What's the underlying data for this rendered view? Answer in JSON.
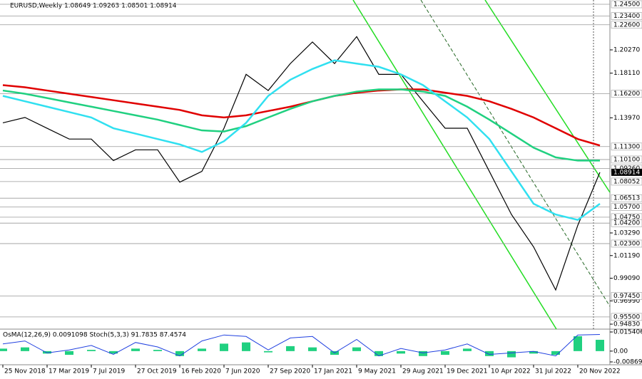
{
  "chart_data": [
    {
      "type": "line",
      "title": "EURUSD,Weekly  1.08649 1.09263 1.08501 1.08914",
      "categories": [
        "25 Nov 2018",
        null,
        "17 Mar 2019",
        null,
        "7 Jul 2019",
        null,
        "27 Oct 2019",
        null,
        "16 Feb 2020",
        null,
        "7 Jun 2020",
        null,
        "27 Sep 2020",
        null,
        "17 Jan 2021",
        null,
        "9 May 2021",
        null,
        "29 Aug 2021",
        null,
        "19 Dec 2021",
        null,
        "10 Apr 2022",
        null,
        "31 Jul 2022",
        null,
        "20 Nov 2022",
        null
      ],
      "series": [
        {
          "color": "#000000",
          "values": [
            1.135,
            1.14,
            1.13,
            1.12,
            1.12,
            1.1,
            1.11,
            1.11,
            1.08,
            1.09,
            1.13,
            1.18,
            1.165,
            1.19,
            1.21,
            1.19,
            1.215,
            1.18,
            1.18,
            1.155,
            1.13,
            1.13,
            1.09,
            1.05,
            1.02,
            0.98,
            1.04,
            1.08914
          ]
        },
        {
          "color": "#e00000",
          "values": [
            1.17,
            1.168,
            1.165,
            1.162,
            1.159,
            1.156,
            1.153,
            1.15,
            1.147,
            1.142,
            1.14,
            1.142,
            1.146,
            1.15,
            1.155,
            1.16,
            1.163,
            1.165,
            1.166,
            1.166,
            1.163,
            1.16,
            1.155,
            1.148,
            1.14,
            1.13,
            1.12,
            1.114
          ]
        },
        {
          "color": "#20d080",
          "values": [
            1.165,
            1.162,
            1.158,
            1.154,
            1.15,
            1.146,
            1.142,
            1.138,
            1.133,
            1.128,
            1.127,
            1.132,
            1.14,
            1.148,
            1.155,
            1.16,
            1.164,
            1.166,
            1.166,
            1.164,
            1.16,
            1.15,
            1.138,
            1.125,
            1.112,
            1.103,
            1.1,
            1.1
          ]
        },
        {
          "color": "#30e0f0",
          "values": [
            1.16,
            1.155,
            1.15,
            1.145,
            1.14,
            1.13,
            1.125,
            1.12,
            1.115,
            1.108,
            1.118,
            1.135,
            1.16,
            1.175,
            1.185,
            1.193,
            1.19,
            1.187,
            1.18,
            1.17,
            1.155,
            1.14,
            1.12,
            1.09,
            1.06,
            1.05,
            1.045,
            1.06
          ]
        }
      ],
      "ylim": [
        0.9483,
        1.245
      ],
      "yticks": [
        {
          "value": 1.2027,
          "label": "1.20270"
        },
        {
          "value": 1.1811,
          "label": "1.18110"
        },
        {
          "value": 1.1397,
          "label": "1.13970"
        },
        {
          "value": 1.0329,
          "label": "1.03290"
        },
        {
          "value": 1.0119,
          "label": "1.01190"
        },
        {
          "value": 0.9909,
          "label": "0.99090"
        },
        {
          "value": 0.9699,
          "label": "0.96990"
        },
        {
          "value": 0.9483,
          "label": "0.94830"
        }
      ],
      "levels": [
        {
          "value": 1.245,
          "label": "1.24500"
        },
        {
          "value": 1.234,
          "label": "1.23400"
        },
        {
          "value": 1.226,
          "label": "1.22600"
        },
        {
          "value": 1.162,
          "label": "1.16200"
        },
        {
          "value": 1.113,
          "label": "1.11300"
        },
        {
          "value": 1.101,
          "label": "1.10100"
        },
        {
          "value": 1.0926,
          "label": "1.09260"
        },
        1.08052,
        1.06513,
        {
          "value": 1.057,
          "label": "1.05700"
        },
        {
          "value": 1.0475,
          "label": "1.04750"
        },
        {
          "value": 1.042,
          "label": "1.04200"
        },
        {
          "value": 1.023,
          "label": "1.02300"
        },
        {
          "value": 0.9745,
          "label": "0.97450"
        },
        {
          "value": 0.955,
          "label": "0.95500"
        }
      ],
      "last_price": 1.08914
    },
    {
      "type": "oscillator",
      "title": "OsMA(12,26,9) 0.0091098  Stoch(5,3,3) 91.7835 87.4574",
      "series": [
        {
          "color": "#20d080",
          "values": [
            0.002,
            0.003,
            -0.002,
            -0.003,
            0.001,
            -0.002,
            0.002,
            0.001,
            -0.004,
            0.002,
            0.006,
            0.007,
            -0.001,
            0.004,
            0.003,
            -0.003,
            0.003,
            -0.004,
            -0.002,
            -0.004,
            -0.003,
            0.002,
            -0.004,
            -0.005,
            -0.002,
            -0.003,
            0.012,
            0.0091098
          ]
        },
        {
          "color": "#2040e0",
          "values": [
            60,
            70,
            30,
            40,
            55,
            25,
            65,
            50,
            20,
            70,
            90,
            85,
            40,
            80,
            85,
            30,
            75,
            20,
            45,
            30,
            40,
            60,
            25,
            30,
            35,
            20,
            90,
            91.7835
          ]
        }
      ],
      "ylim": [
        -0.008692,
        0.0154064
      ],
      "y2lim": [
        0,
        100
      ],
      "yticks": [
        0.0154064,
        {
          "value": 0,
          "label": "0.00"
        },
        -0.008692
      ]
    }
  ]
}
